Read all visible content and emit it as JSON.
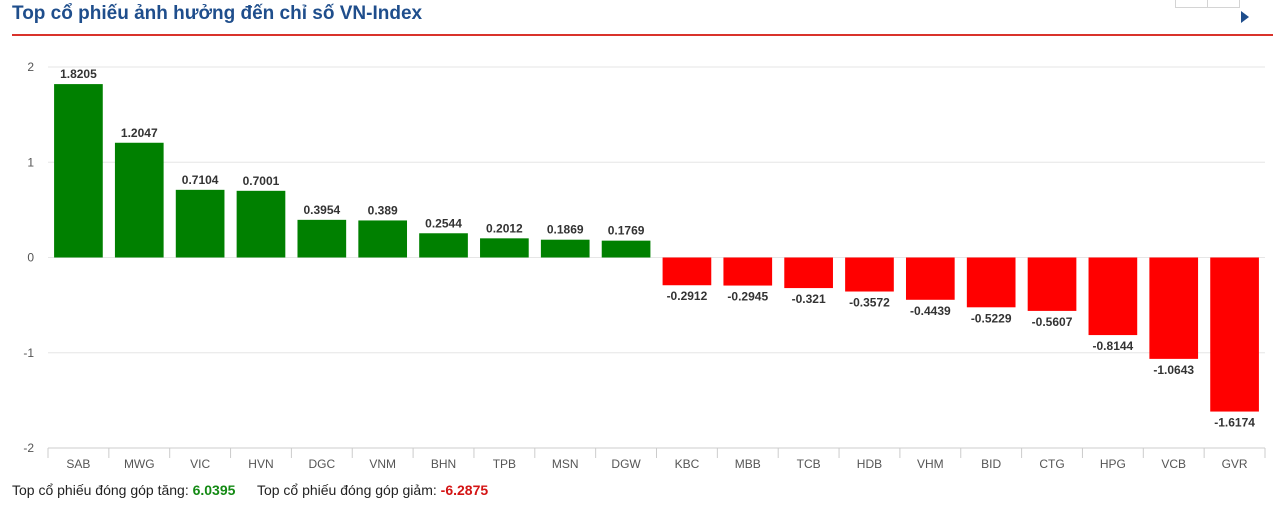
{
  "header": {
    "title": "Top cổ phiếu ảnh hưởng đến chỉ số VN-Index"
  },
  "colors": {
    "title": "#1f4e8c",
    "accent_line": "#d9322b",
    "positive": "#008000",
    "negative": "#ff0000",
    "grid": "#e6e6e6"
  },
  "chart_data": {
    "type": "bar",
    "title": "",
    "xlabel": "",
    "ylabel": "",
    "ylim": [
      -2,
      2
    ],
    "yticks": [
      2,
      1,
      0,
      -1,
      -2
    ],
    "grid": true,
    "categories": [
      "SAB",
      "MWG",
      "VIC",
      "HVN",
      "DGC",
      "VNM",
      "BHN",
      "TPB",
      "MSN",
      "DGW",
      "KBC",
      "MBB",
      "TCB",
      "HDB",
      "VHM",
      "BID",
      "CTG",
      "HPG",
      "VCB",
      "GVR"
    ],
    "values": [
      1.8205,
      1.2047,
      0.7104,
      0.7001,
      0.3954,
      0.389,
      0.2544,
      0.2012,
      0.1869,
      0.1769,
      -0.2912,
      -0.2945,
      -0.321,
      -0.3572,
      -0.4439,
      -0.5229,
      -0.5607,
      -0.8144,
      -1.0643,
      -1.6174
    ],
    "labels": [
      "1.8205",
      "1.2047",
      "0.7104",
      "0.7001",
      "0.3954",
      "0.389",
      "0.2544",
      "0.2012",
      "0.1869",
      "0.1769",
      "-0.2912",
      "-0.2945",
      "-0.321",
      "-0.3572",
      "-0.4439",
      "-0.5229",
      "-0.5607",
      "-0.8144",
      "-1.0643",
      "-1.6174"
    ]
  },
  "footer": {
    "gain_label": "Top cổ phiếu đóng góp tăng:",
    "gain_value": "6.0395",
    "loss_label": "Top cổ phiếu đóng góp giảm:",
    "loss_value": "-6.2875"
  }
}
